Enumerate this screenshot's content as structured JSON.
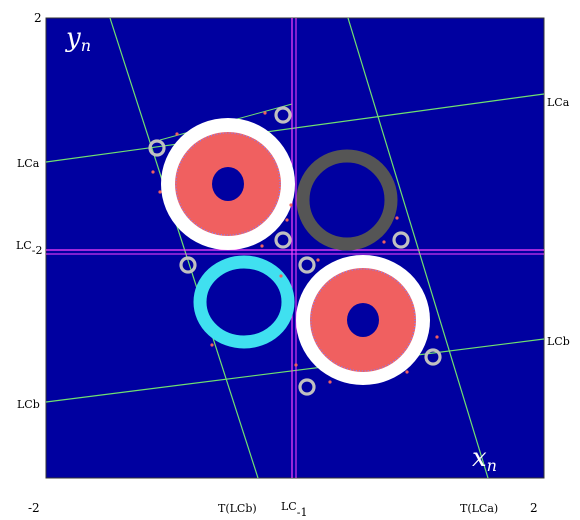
{
  "figure": {
    "variables": {
      "y": "y",
      "y_sub": "n",
      "x": "x",
      "x_sub": "n"
    },
    "corner_labels": {
      "top_left": "2",
      "bottom_left": "-2",
      "bottom_right": "2",
      "left_bottom": "-2"
    },
    "curve_labels": {
      "lca_left": "LCa",
      "lca_right": "LCa",
      "lc2_base": "LC",
      "lc2_sub": "-2",
      "lcb_left": "LCb",
      "lcb_right": "LCb",
      "tlcb": "T(LCb)",
      "lc1_base": "LC",
      "lc1_sub": "-1",
      "tlca": "T(LCa)"
    },
    "colors": {
      "background": "#0000a0",
      "attractor_red": "#f06060",
      "band_white": "#ffffff",
      "ring_gray": "#555555",
      "ring_cyan": "#40e0f0",
      "small_rings": "#c0c0c0",
      "green_lines": "#70e070",
      "magenta_lines": "#ff40ff"
    }
  }
}
